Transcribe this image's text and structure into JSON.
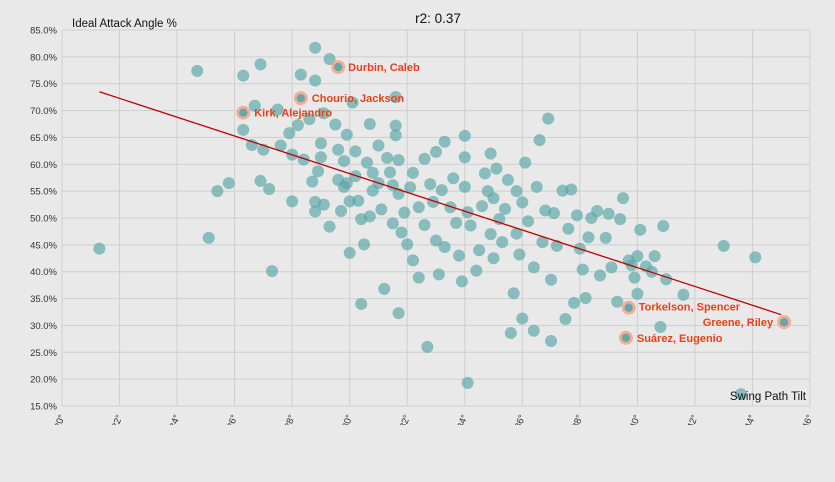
{
  "chart_data": {
    "type": "scatter",
    "title": "r2: 0.37",
    "xlabel": "Swing Path Tilt",
    "ylabel": "Ideal Attack Angle %",
    "xlim": [
      20,
      46
    ],
    "ylim": [
      15,
      85
    ],
    "x_ticks": [
      20,
      22,
      24,
      26,
      28,
      30,
      32,
      34,
      36,
      38,
      40,
      42,
      44,
      46
    ],
    "x_tick_labels": [
      "20°",
      "22°",
      "24°",
      "26°",
      "28°",
      "30°",
      "32°",
      "34°",
      "36°",
      "38°",
      "40°",
      "42°",
      "44°",
      "46°"
    ],
    "y_ticks": [
      15,
      20,
      25,
      30,
      35,
      40,
      45,
      50,
      55,
      60,
      65,
      70,
      75,
      80,
      85
    ],
    "y_tick_labels": [
      "15.0%",
      "20.0%",
      "25.0%",
      "30.0%",
      "35.0%",
      "40.0%",
      "45.0%",
      "50.0%",
      "55.0%",
      "60.0%",
      "65.0%",
      "70.0%",
      "75.0%",
      "80.0%",
      "85.0%"
    ],
    "grid": true,
    "point_color": "#5aa6a8",
    "highlight_color": "#f3a48a",
    "label_color": "#e8401c",
    "trend_color": "#c00000",
    "trendline": {
      "x": [
        21.3,
        45.0
      ],
      "y": [
        73.5,
        32.0
      ]
    },
    "highlighted": [
      {
        "name": "Durbin, Caleb",
        "x": 29.6,
        "y": 78.1
      },
      {
        "name": "Chourio, Jackson",
        "x": 28.3,
        "y": 72.3
      },
      {
        "name": "Kirk, Alejandro",
        "x": 26.3,
        "y": 69.6
      },
      {
        "name": "Torkelson, Spencer",
        "x": 39.7,
        "y": 33.3
      },
      {
        "name": "Greene, Riley",
        "x": 45.1,
        "y": 30.6
      },
      {
        "name": "Suárez, Eugenio",
        "x": 39.6,
        "y": 27.7
      }
    ],
    "points": [
      [
        21.3,
        44.3
      ],
      [
        24.7,
        77.4
      ],
      [
        25.1,
        46.3
      ],
      [
        25.4,
        55.0
      ],
      [
        25.8,
        56.5
      ],
      [
        26.3,
        76.5
      ],
      [
        26.3,
        66.4
      ],
      [
        26.6,
        63.6
      ],
      [
        26.7,
        70.9
      ],
      [
        26.9,
        78.6
      ],
      [
        26.9,
        56.9
      ],
      [
        27.0,
        62.7
      ],
      [
        27.2,
        55.4
      ],
      [
        27.3,
        40.1
      ],
      [
        27.5,
        70.2
      ],
      [
        27.6,
        63.5
      ],
      [
        27.9,
        65.8
      ],
      [
        28.0,
        61.8
      ],
      [
        28.0,
        53.1
      ],
      [
        28.2,
        67.3
      ],
      [
        28.3,
        76.7
      ],
      [
        28.4,
        60.9
      ],
      [
        28.6,
        68.4
      ],
      [
        28.7,
        56.8
      ],
      [
        28.8,
        81.7
      ],
      [
        28.8,
        75.6
      ],
      [
        28.8,
        53.0
      ],
      [
        28.8,
        51.2
      ],
      [
        28.9,
        58.7
      ],
      [
        29.0,
        61.3
      ],
      [
        29.0,
        63.9
      ],
      [
        29.1,
        69.5
      ],
      [
        29.1,
        52.5
      ],
      [
        29.3,
        79.6
      ],
      [
        29.3,
        48.4
      ],
      [
        29.5,
        67.4
      ],
      [
        29.6,
        62.7
      ],
      [
        29.6,
        57.1
      ],
      [
        29.7,
        51.3
      ],
      [
        29.8,
        60.6
      ],
      [
        29.8,
        55.8
      ],
      [
        29.9,
        65.5
      ],
      [
        29.9,
        56.5
      ],
      [
        30.0,
        53.1
      ],
      [
        30.0,
        43.5
      ],
      [
        30.1,
        71.5
      ],
      [
        30.2,
        62.4
      ],
      [
        30.2,
        57.8
      ],
      [
        30.3,
        53.2
      ],
      [
        30.4,
        49.8
      ],
      [
        30.4,
        34.0
      ],
      [
        30.5,
        45.1
      ],
      [
        30.6,
        60.3
      ],
      [
        30.7,
        67.5
      ],
      [
        30.7,
        50.3
      ],
      [
        30.8,
        58.4
      ],
      [
        30.8,
        55.1
      ],
      [
        31.0,
        63.5
      ],
      [
        31.0,
        56.5
      ],
      [
        31.1,
        51.6
      ],
      [
        31.2,
        36.8
      ],
      [
        31.3,
        61.2
      ],
      [
        31.4,
        58.5
      ],
      [
        31.5,
        49.0
      ],
      [
        31.5,
        56.1
      ],
      [
        31.6,
        72.5
      ],
      [
        31.6,
        67.2
      ],
      [
        31.6,
        65.4
      ],
      [
        31.7,
        60.8
      ],
      [
        31.7,
        54.5
      ],
      [
        31.7,
        32.3
      ],
      [
        31.8,
        47.3
      ],
      [
        31.9,
        51.0
      ],
      [
        32.0,
        45.1
      ],
      [
        32.1,
        55.7
      ],
      [
        32.2,
        58.4
      ],
      [
        32.2,
        42.1
      ],
      [
        32.4,
        52.0
      ],
      [
        32.4,
        38.9
      ],
      [
        32.6,
        61.0
      ],
      [
        32.6,
        48.7
      ],
      [
        32.7,
        26.0
      ],
      [
        32.8,
        56.3
      ],
      [
        32.9,
        53.0
      ],
      [
        33.0,
        62.3
      ],
      [
        33.0,
        45.8
      ],
      [
        33.1,
        39.5
      ],
      [
        33.2,
        55.2
      ],
      [
        33.3,
        44.6
      ],
      [
        33.3,
        64.2
      ],
      [
        33.5,
        52.0
      ],
      [
        33.6,
        57.4
      ],
      [
        33.7,
        49.1
      ],
      [
        33.8,
        43.0
      ],
      [
        33.9,
        38.2
      ],
      [
        34.0,
        61.3
      ],
      [
        34.0,
        65.3
      ],
      [
        34.0,
        55.8
      ],
      [
        34.1,
        51.1
      ],
      [
        34.2,
        48.6
      ],
      [
        34.1,
        19.3
      ],
      [
        34.4,
        40.2
      ],
      [
        34.5,
        44.0
      ],
      [
        34.6,
        52.2
      ],
      [
        34.7,
        58.3
      ],
      [
        34.8,
        55.0
      ],
      [
        34.9,
        62.0
      ],
      [
        34.9,
        47.0
      ],
      [
        35.0,
        42.5
      ],
      [
        35.0,
        53.7
      ],
      [
        35.1,
        59.2
      ],
      [
        35.2,
        49.8
      ],
      [
        35.3,
        45.5
      ],
      [
        35.4,
        51.7
      ],
      [
        35.5,
        57.1
      ],
      [
        35.6,
        28.6
      ],
      [
        35.7,
        36.0
      ],
      [
        35.8,
        55.0
      ],
      [
        35.8,
        47.1
      ],
      [
        35.9,
        43.2
      ],
      [
        36.0,
        31.3
      ],
      [
        36.0,
        52.9
      ],
      [
        36.1,
        60.3
      ],
      [
        36.2,
        49.4
      ],
      [
        36.4,
        40.8
      ],
      [
        36.4,
        29.0
      ],
      [
        36.5,
        55.8
      ],
      [
        36.6,
        64.5
      ],
      [
        36.7,
        45.5
      ],
      [
        36.8,
        51.4
      ],
      [
        36.9,
        68.5
      ],
      [
        37.0,
        38.5
      ],
      [
        37.0,
        27.1
      ],
      [
        37.1,
        50.9
      ],
      [
        37.2,
        44.8
      ],
      [
        37.4,
        55.1
      ],
      [
        37.5,
        31.2
      ],
      [
        37.6,
        48.0
      ],
      [
        37.7,
        55.3
      ],
      [
        37.8,
        34.2
      ],
      [
        37.9,
        50.5
      ],
      [
        38.0,
        44.3
      ],
      [
        38.1,
        40.4
      ],
      [
        38.2,
        35.1
      ],
      [
        38.3,
        46.4
      ],
      [
        38.4,
        50.0
      ],
      [
        38.6,
        51.3
      ],
      [
        38.7,
        39.3
      ],
      [
        38.9,
        46.3
      ],
      [
        39.0,
        50.8
      ],
      [
        39.1,
        40.8
      ],
      [
        39.3,
        34.4
      ],
      [
        39.4,
        49.8
      ],
      [
        39.5,
        53.7
      ],
      [
        39.7,
        42.1
      ],
      [
        39.8,
        41.2
      ],
      [
        39.9,
        38.9
      ],
      [
        40.0,
        35.9
      ],
      [
        40.0,
        42.9
      ],
      [
        40.1,
        47.8
      ],
      [
        40.3,
        41.0
      ],
      [
        40.5,
        40.0
      ],
      [
        40.8,
        29.7
      ],
      [
        40.9,
        48.5
      ],
      [
        41.0,
        38.6
      ],
      [
        41.6,
        35.7
      ],
      [
        43.0,
        44.8
      ],
      [
        43.6,
        17.2
      ],
      [
        44.1,
        42.7
      ],
      [
        40.6,
        42.9
      ]
    ]
  }
}
